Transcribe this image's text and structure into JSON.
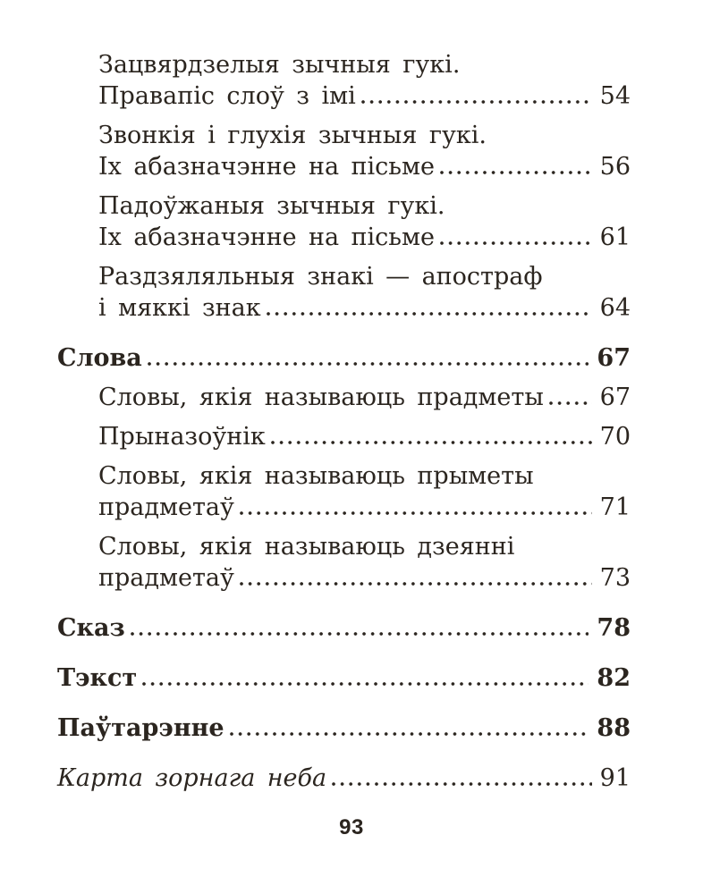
{
  "page": {
    "background_color": "#ffffff",
    "text_color": "#2b251f",
    "footer_page_number": "93"
  },
  "toc": {
    "entries": [
      {
        "level": "sub",
        "lines": [
          "Зацвярдзелыя зычныя гукі.",
          "Правапіс слоў з імі"
        ],
        "page": "54"
      },
      {
        "level": "sub",
        "lines": [
          "Звонкія і глухія зычныя гукі.",
          "Іх абазначэнне на пісьме"
        ],
        "page": "56"
      },
      {
        "level": "sub",
        "lines": [
          "Падоўжаныя зычныя гукі.",
          "Іх абазначэнне на пісьме"
        ],
        "page": "61"
      },
      {
        "level": "sub",
        "lines": [
          "Раздзяляльныя знакі — апостраф",
          "і мяккі знак"
        ],
        "page": "64"
      },
      {
        "level": "top",
        "lines": [
          "Слова"
        ],
        "page": "67"
      },
      {
        "level": "sub",
        "lines": [
          "Словы, якія называюць прадметы"
        ],
        "page": "67"
      },
      {
        "level": "sub",
        "lines": [
          "Прыназоўнік"
        ],
        "page": "70"
      },
      {
        "level": "sub",
        "lines": [
          "Словы, якія называюць прыметы",
          "прадметаў"
        ],
        "page": "71"
      },
      {
        "level": "sub",
        "lines": [
          "Словы, якія называюць дзеянні",
          "прадметаў"
        ],
        "page": "73"
      },
      {
        "level": "top",
        "lines": [
          "Сказ"
        ],
        "page": "78"
      },
      {
        "level": "top",
        "lines": [
          "Тэкст"
        ],
        "page": "82"
      },
      {
        "level": "top",
        "lines": [
          "Паўтарэнне"
        ],
        "page": "88"
      },
      {
        "level": "italic",
        "lines": [
          "Карта зорнага неба"
        ],
        "page": "91"
      }
    ]
  }
}
